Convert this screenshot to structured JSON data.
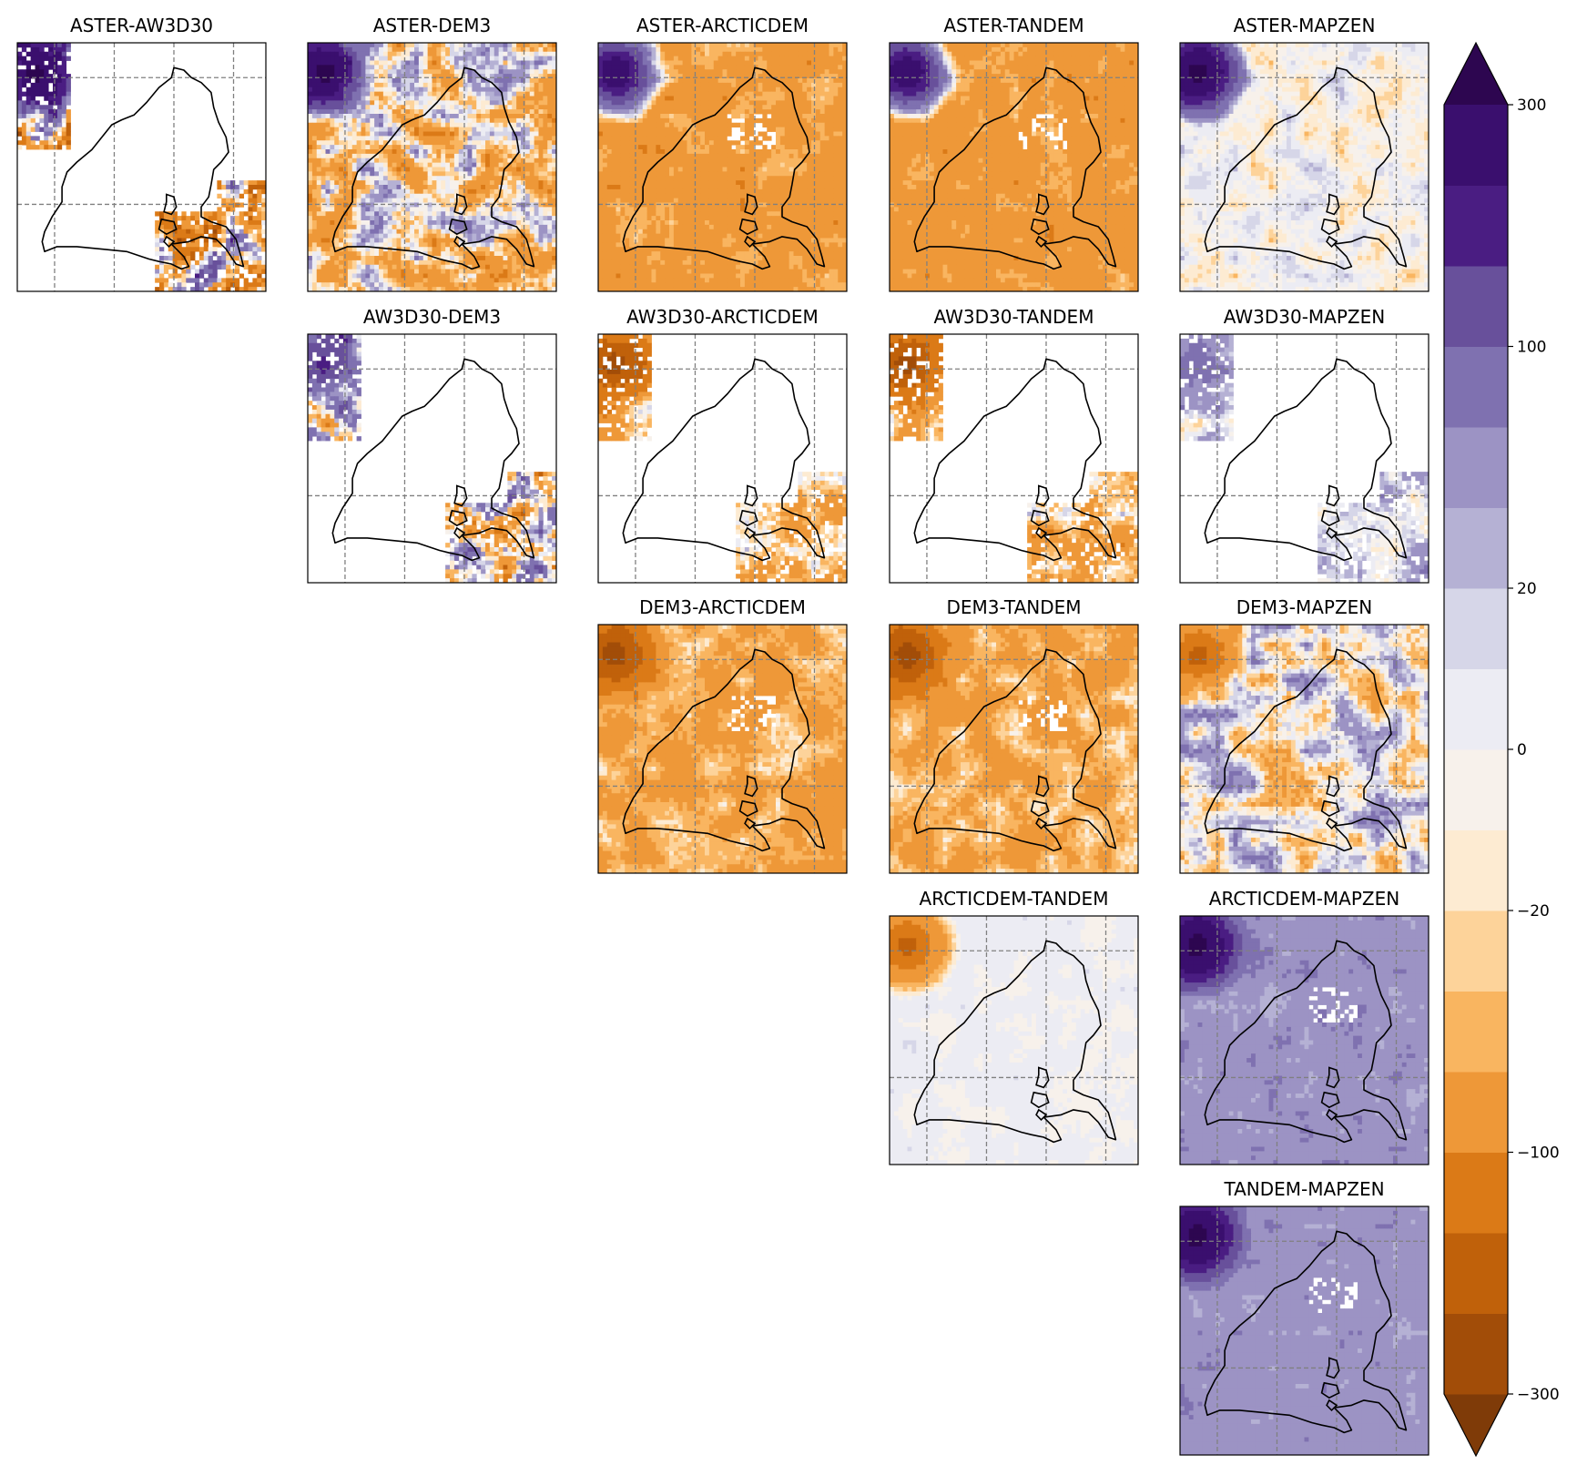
{
  "chart_data": {
    "type": "heatmap",
    "panels": [
      {
        "title": "ASTER-AW3D30",
        "row": 0,
        "col": 0,
        "coverage": "partial",
        "base": -40,
        "noise": 180,
        "hotspot": 300
      },
      {
        "title": "ASTER-DEM3",
        "row": 0,
        "col": 1,
        "coverage": "full",
        "base": -20,
        "noise": 90,
        "hotspot": 300
      },
      {
        "title": "ASTER-ARCTICDEM",
        "row": 0,
        "col": 2,
        "coverage": "full",
        "base": -65,
        "noise": 35,
        "hotspot": 250
      },
      {
        "title": "ASTER-TANDEM",
        "row": 0,
        "col": 3,
        "coverage": "full",
        "base": -65,
        "noise": 35,
        "hotspot": 250
      },
      {
        "title": "ASTER-MAPZEN",
        "row": 0,
        "col": 4,
        "coverage": "full",
        "base": -3,
        "noise": 25,
        "hotspot": 300
      },
      {
        "title": "AW3D30-DEM3",
        "row": 1,
        "col": 1,
        "coverage": "partial",
        "base": 0,
        "noise": 150,
        "hotspot": 150
      },
      {
        "title": "AW3D30-ARCTICDEM",
        "row": 1,
        "col": 2,
        "coverage": "partial",
        "base": -40,
        "noise": 60,
        "hotspot": -200
      },
      {
        "title": "AW3D30-TANDEM",
        "row": 1,
        "col": 3,
        "coverage": "partial",
        "base": -40,
        "noise": 60,
        "hotspot": -200
      },
      {
        "title": "AW3D30-MAPZEN",
        "row": 1,
        "col": 4,
        "coverage": "partial",
        "base": 15,
        "noise": 40,
        "hotspot": 60
      },
      {
        "title": "DEM3-ARCTICDEM",
        "row": 2,
        "col": 2,
        "coverage": "full",
        "base": -50,
        "noise": 40,
        "hotspot": -200
      },
      {
        "title": "DEM3-TANDEM",
        "row": 2,
        "col": 3,
        "coverage": "full",
        "base": -50,
        "noise": 40,
        "hotspot": -200
      },
      {
        "title": "DEM3-MAPZEN",
        "row": 2,
        "col": 4,
        "coverage": "full",
        "base": 0,
        "noise": 60,
        "hotspot": -150
      },
      {
        "title": "ARCTICDEM-TANDEM",
        "row": 3,
        "col": 3,
        "coverage": "full",
        "base": 2,
        "noise": 8,
        "hotspot": -150
      },
      {
        "title": "ARCTICDEM-MAPZEN",
        "row": 3,
        "col": 4,
        "coverage": "full",
        "base": 40,
        "noise": 15,
        "hotspot": 300
      },
      {
        "title": "TANDEM-MAPZEN",
        "row": 4,
        "col": 4,
        "coverage": "full",
        "base": 40,
        "noise": 12,
        "hotspot": 300
      }
    ],
    "colorbar": {
      "ticks": [
        "300",
        "100",
        "20",
        "0",
        "−20",
        "−100",
        "−300"
      ],
      "boundaries": [
        -300,
        -200,
        -150,
        -100,
        -50,
        -30,
        -20,
        -10,
        0,
        10,
        20,
        30,
        50,
        100,
        150,
        200,
        300
      ],
      "extend": "both",
      "colors": [
        "#a24d08",
        "#c0610a",
        "#db7a17",
        "#ee9838",
        "#f9b560",
        "#fdd39a",
        "#fdebd2",
        "#f7f1eb",
        "#ececf3",
        "#d6d6e8",
        "#b5b1d4",
        "#9c93c4",
        "#7f71b0",
        "#68509b",
        "#4a1d82",
        "#3a0f6e"
      ],
      "over_color": "#2d0650",
      "under_color": "#7f3b08"
    },
    "grid": "dashed",
    "cmap": "PuOr"
  }
}
